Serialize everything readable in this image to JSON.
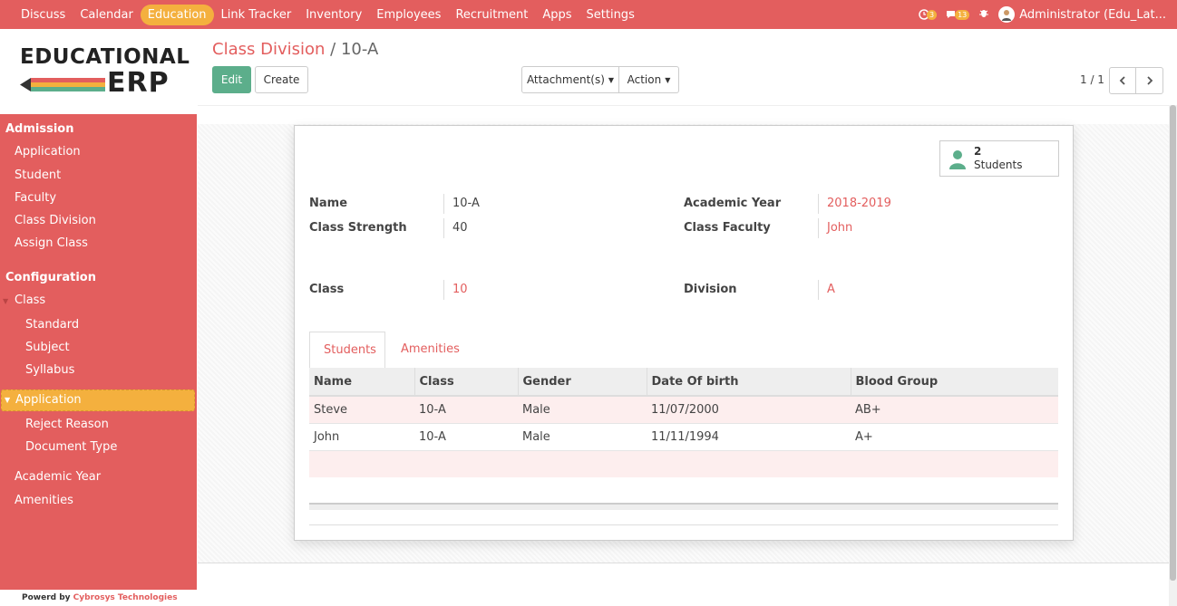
{
  "topbar": {
    "menu": [
      "Discuss",
      "Calendar",
      "Education",
      "Link Tracker",
      "Inventory",
      "Employees",
      "Recruitment",
      "Apps",
      "Settings"
    ],
    "active_menu": "Education",
    "activity_count": "3",
    "messages_count": "13",
    "user": "Administrator (Edu_Lat..."
  },
  "sidebar": {
    "logo_line1": "EDUCATIONAL",
    "logo_line2": "ERP",
    "admission_title": "Admission",
    "admission_items": [
      "Application",
      "Student",
      "Faculty",
      "Class Division",
      "Assign Class"
    ],
    "configuration_title": "Configuration",
    "class_group": "Class",
    "class_items": [
      "Standard",
      "Subject",
      "Syllabus"
    ],
    "application_group": "Application",
    "application_items": [
      "Reject Reason",
      "Document Type"
    ],
    "other_items": [
      "Academic Year",
      "Amenities"
    ],
    "powered_prefix": "Powerd by",
    "powered_company": "Cybrosys Technologies"
  },
  "breadcrumb": {
    "parent": "Class Division",
    "separator": "/",
    "current": "10-A"
  },
  "buttons": {
    "edit": "Edit",
    "create": "Create",
    "attachments": "Attachment(s)",
    "action": "Action"
  },
  "pager": {
    "value": "1 / 1"
  },
  "stat_button": {
    "count": "2",
    "label": "Students"
  },
  "fields": {
    "name_label": "Name",
    "name_value": "10-A",
    "strength_label": "Class Strength",
    "strength_value": "40",
    "year_label": "Academic Year",
    "year_value": "2018-2019",
    "faculty_label": "Class Faculty",
    "faculty_value": "John",
    "class_label": "Class",
    "class_value": "10",
    "division_label": "Division",
    "division_value": "A"
  },
  "tabs": [
    "Students",
    "Amenities"
  ],
  "students_table": {
    "headers": [
      "Name",
      "Class",
      "Gender",
      "Date Of birth",
      "Blood Group"
    ],
    "rows": [
      [
        "Steve",
        "10-A",
        "Male",
        "11/07/2000",
        "AB+"
      ],
      [
        "John",
        "10-A",
        "Male",
        "11/11/1994",
        "A+"
      ]
    ]
  },
  "colors": {
    "brand": "#e35e5e",
    "highlight": "#f4b03e",
    "primary_button": "#5cae8b"
  }
}
